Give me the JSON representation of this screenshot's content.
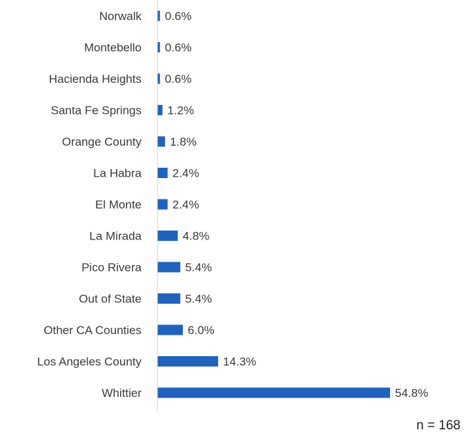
{
  "chart_data": {
    "type": "bar",
    "orientation": "horizontal",
    "categories": [
      "Norwalk",
      "Montebello",
      "Hacienda Heights",
      "Santa Fe Springs",
      "Orange County",
      "La Habra",
      "El Monte",
      "La Mirada",
      "Pico Rivera",
      "Out of State",
      "Other CA Counties",
      "Los Angeles County",
      "Whittier"
    ],
    "values": [
      0.6,
      0.6,
      0.6,
      1.2,
      1.8,
      2.4,
      2.4,
      4.8,
      5.4,
      5.4,
      6.0,
      14.3,
      54.8
    ],
    "value_labels": [
      "0.6%",
      "0.6%",
      "0.6%",
      "1.2%",
      "1.8%",
      "2.4%",
      "2.4%",
      "4.8%",
      "5.4%",
      "5.4%",
      "6.0%",
      "14.3%",
      "54.8%"
    ],
    "bar_color": "#1f63c1",
    "title": "",
    "xlabel": "",
    "ylabel": "",
    "grid": false,
    "legend": "none"
  },
  "note": "n = 168"
}
